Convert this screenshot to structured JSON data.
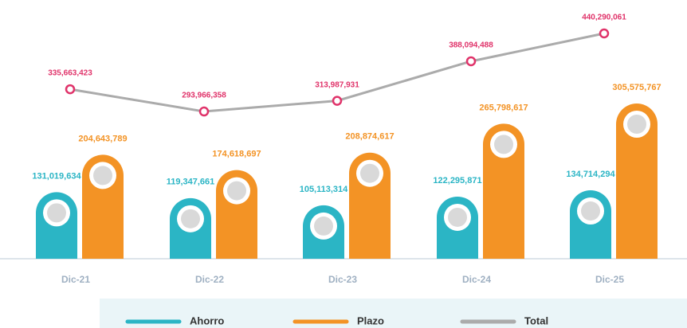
{
  "chart_data": {
    "type": "bar-line",
    "categories": [
      "Dic-21",
      "Dic-22",
      "Dic-23",
      "Dic-24",
      "Dic-25"
    ],
    "series": [
      {
        "name": "Ahorro",
        "color": "#2bb5c5",
        "values": [
          131019634,
          119347661,
          105113314,
          122295871,
          134714294
        ],
        "value_labels": [
          "131,019,634",
          "119,347,661",
          "105,113,314",
          "122,295,871",
          "134,714,294"
        ]
      },
      {
        "name": "Plazo",
        "color": "#f39325",
        "values": [
          204643789,
          174618697,
          208874617,
          265798617,
          305575767
        ],
        "value_labels": [
          "204,643,789",
          "174,618,697",
          "208,874,617",
          "265,798,617",
          "305,575,767"
        ]
      },
      {
        "name": "Total",
        "color": "#ababab",
        "label_color": "#e0336a",
        "type": "line",
        "values": [
          335663423,
          293966358,
          313987931,
          388094488,
          440290061
        ],
        "value_labels": [
          "335,663,423",
          "293,966,358",
          "313,987,931",
          "388,094,488",
          "440,290,061"
        ]
      }
    ]
  }
}
